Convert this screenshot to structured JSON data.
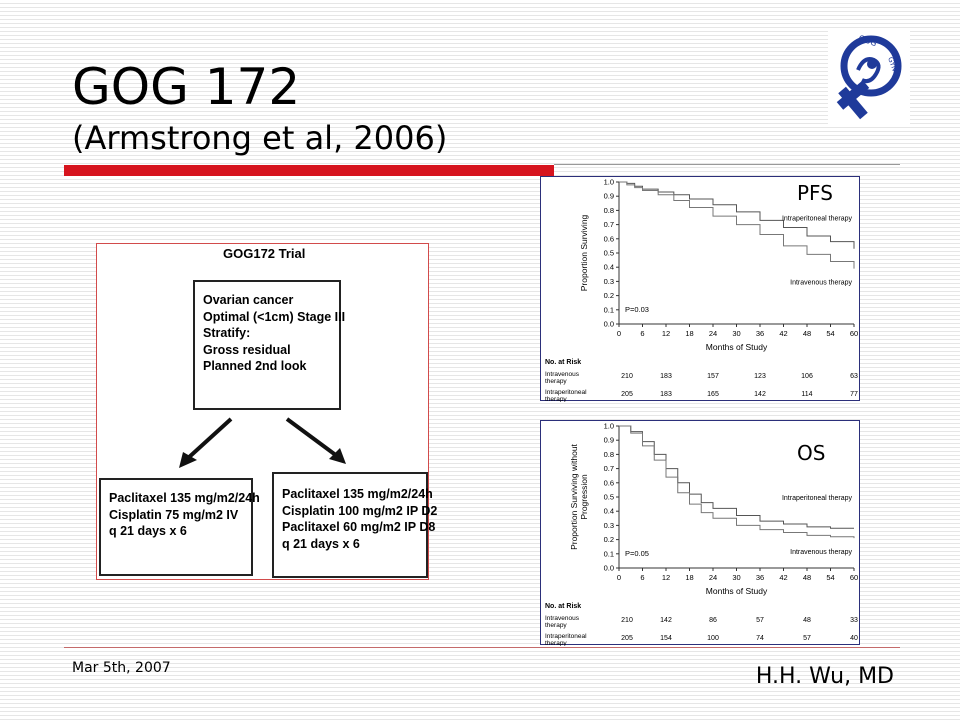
{
  "slide": {
    "title": "GOG 172",
    "subtitle": "(Armstrong et al, 2006)",
    "footer_date": "Mar 5th, 2007",
    "footer_author": "H.H. Wu, MD",
    "logo_icon": "gog-gyn-logo-icon",
    "accent_color": "#d6141e"
  },
  "trial": {
    "heading": "GOG172 Trial",
    "eligibility": [
      "Ovarian cancer",
      "Optimal (<1cm) Stage III",
      "Stratify:",
      "Gross residual",
      "Planned 2nd look"
    ],
    "iv_arm": [
      "Paclitaxel 135 mg/m2/24h",
      "Cisplatin 75 mg/m2 IV",
      "q 21 days x 6"
    ],
    "ip_arm": [
      "Paclitaxel 135 mg/m2/24h",
      "Cisplatin 100 mg/m2 IP D2",
      "Paclitaxel 60 mg/m2 IP D8",
      "q 21 days x 6"
    ]
  },
  "chart_data": [
    {
      "type": "line",
      "tag": "PFS",
      "ylabel": "Proportion Surviving",
      "xlabel": "Months of Study",
      "xlim": [
        0,
        60
      ],
      "ylim": [
        0,
        1.0
      ],
      "xticks": [
        0,
        6,
        12,
        18,
        24,
        30,
        36,
        42,
        48,
        54,
        60
      ],
      "yticks": [
        "0.0",
        "0.1",
        "0.2",
        "0.3",
        "0.4",
        "0.5",
        "0.6",
        "0.7",
        "0.8",
        "0.9",
        "1.0"
      ],
      "pvalue": "P=0.03",
      "series": [
        {
          "name": "Intraperitoneal therapy",
          "x": [
            0,
            2,
            4,
            6,
            10,
            14,
            18,
            24,
            30,
            36,
            42,
            48,
            54,
            60
          ],
          "y": [
            1.0,
            0.99,
            0.97,
            0.95,
            0.93,
            0.91,
            0.88,
            0.84,
            0.79,
            0.73,
            0.68,
            0.62,
            0.58,
            0.53
          ]
        },
        {
          "name": "Intravenous therapy",
          "x": [
            0,
            2,
            4,
            6,
            10,
            14,
            18,
            24,
            30,
            36,
            42,
            48,
            54,
            60
          ],
          "y": [
            1.0,
            0.98,
            0.96,
            0.94,
            0.91,
            0.87,
            0.82,
            0.76,
            0.7,
            0.63,
            0.55,
            0.49,
            0.44,
            0.39
          ]
        }
      ],
      "risk_table": {
        "title": "No. at Risk",
        "x": [
          0,
          12,
          24,
          36,
          48,
          60
        ],
        "rows": [
          {
            "label_lines": [
              "Intravenous",
              "therapy"
            ],
            "values": [
              "210",
              "183",
              "157",
              "123",
              "106",
              "63"
            ]
          },
          {
            "label_lines": [
              "Intraperitoneal",
              "therapy"
            ],
            "values": [
              "205",
              "183",
              "165",
              "142",
              "114",
              "77"
            ]
          }
        ]
      }
    },
    {
      "type": "line",
      "tag": "OS",
      "ylabel_lines": [
        "Proportion Surviving without",
        "Progression"
      ],
      "xlabel": "Months of Study",
      "xlim": [
        0,
        60
      ],
      "ylim": [
        0,
        1.0
      ],
      "xticks": [
        0,
        6,
        12,
        18,
        24,
        30,
        36,
        42,
        48,
        54,
        60
      ],
      "yticks": [
        "0.0",
        "0.1",
        "0.2",
        "0.3",
        "0.4",
        "0.5",
        "0.6",
        "0.7",
        "0.8",
        "0.9",
        "1.0"
      ],
      "pvalue": "P=0.05",
      "series": [
        {
          "name": "Intraperitoneal therapy",
          "x": [
            0,
            3,
            6,
            9,
            12,
            15,
            18,
            21,
            24,
            30,
            36,
            42,
            48,
            54,
            60
          ],
          "y": [
            1.0,
            0.96,
            0.89,
            0.8,
            0.7,
            0.6,
            0.52,
            0.46,
            0.42,
            0.37,
            0.33,
            0.31,
            0.29,
            0.28,
            0.28
          ]
        },
        {
          "name": "Intravenous therapy",
          "x": [
            0,
            3,
            6,
            9,
            12,
            15,
            18,
            21,
            24,
            30,
            36,
            42,
            48,
            54,
            60
          ],
          "y": [
            1.0,
            0.95,
            0.86,
            0.76,
            0.64,
            0.53,
            0.45,
            0.39,
            0.35,
            0.3,
            0.27,
            0.25,
            0.23,
            0.22,
            0.21
          ]
        }
      ],
      "risk_table": {
        "title": "No. at Risk",
        "x": [
          0,
          12,
          24,
          36,
          48,
          60
        ],
        "rows": [
          {
            "label_lines": [
              "Intravenous",
              "therapy"
            ],
            "values": [
              "210",
              "142",
              "86",
              "57",
              "48",
              "33"
            ]
          },
          {
            "label_lines": [
              "Intraperitoneal",
              "therapy"
            ],
            "values": [
              "205",
              "154",
              "100",
              "74",
              "57",
              "40"
            ]
          }
        ]
      }
    }
  ]
}
